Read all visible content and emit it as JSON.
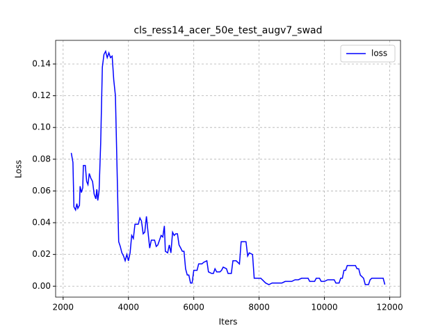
{
  "chart_data": {
    "type": "line",
    "title": "cls_ress14_acer_50e_test_augv7_swad",
    "xlabel": "Iters",
    "ylabel": "Loss",
    "grid": true,
    "legend": "upper right",
    "xlim": [
      1770,
      12330
    ],
    "xticks": [
      2000,
      4000,
      6000,
      8000,
      10000,
      12000
    ],
    "ylim": [
      -0.0069,
      0.1549
    ],
    "yticks": [
      {
        "value": 0,
        "label": "0.00"
      },
      0.02,
      0.04,
      0.06,
      0.08,
      {
        "value": 0.1,
        "label": "0.10"
      },
      0.12,
      0.14
    ],
    "series": [
      {
        "name": "loss",
        "color": "#0000ff",
        "x": [
          2250,
          2300,
          2330,
          2380,
          2420,
          2450,
          2500,
          2520,
          2560,
          2600,
          2620,
          2680,
          2720,
          2760,
          2800,
          2850,
          2900,
          2950,
          3000,
          3030,
          3060,
          3100,
          3150,
          3200,
          3250,
          3300,
          3350,
          3400,
          3450,
          3500,
          3550,
          3600,
          3650,
          3700,
          3750,
          3800,
          3850,
          3900,
          3950,
          4000,
          4050,
          4100,
          4150,
          4200,
          4300,
          4350,
          4400,
          4450,
          4500,
          4550,
          4600,
          4650,
          4700,
          4800,
          4850,
          4900,
          4950,
          5000,
          5050,
          5100,
          5130,
          5200,
          5250,
          5300,
          5350,
          5400,
          5450,
          5500,
          5550,
          5600,
          5650,
          5700,
          5750,
          5800,
          5850,
          5900,
          5950,
          6000,
          6100,
          6150,
          6250,
          6300,
          6400,
          6450,
          6550,
          6600,
          6650,
          6700,
          6800,
          6850,
          6900,
          7000,
          7050,
          7150,
          7200,
          7300,
          7400,
          7450,
          7550,
          7600,
          7650,
          7700,
          7800,
          7850,
          7950,
          8050,
          8100,
          8200,
          8300,
          8400,
          8600,
          8700,
          8800,
          9000,
          9100,
          9200,
          9300,
          9500,
          9550,
          9700,
          9750,
          9850,
          9900,
          10000,
          10100,
          10300,
          10350,
          10450,
          10500,
          10550,
          10600,
          10650,
          10700,
          10950,
          11000,
          11050,
          11100,
          11200,
          11250,
          11350,
          11400,
          11450,
          11800,
          11850
        ],
        "values": [
          0.084,
          0.078,
          0.05,
          0.048,
          0.052,
          0.049,
          0.051,
          0.063,
          0.059,
          0.062,
          0.076,
          0.076,
          0.066,
          0.064,
          0.071,
          0.068,
          0.066,
          0.058,
          0.055,
          0.061,
          0.054,
          0.06,
          0.09,
          0.138,
          0.146,
          0.148,
          0.144,
          0.147,
          0.144,
          0.145,
          0.13,
          0.12,
          0.075,
          0.028,
          0.025,
          0.021,
          0.019,
          0.016,
          0.02,
          0.016,
          0.021,
          0.032,
          0.03,
          0.039,
          0.039,
          0.043,
          0.041,
          0.033,
          0.034,
          0.044,
          0.034,
          0.024,
          0.029,
          0.029,
          0.025,
          0.026,
          0.029,
          0.032,
          0.031,
          0.038,
          0.022,
          0.021,
          0.026,
          0.021,
          0.034,
          0.032,
          0.033,
          0.033,
          0.026,
          0.024,
          0.022,
          0.022,
          0.011,
          0.007,
          0.007,
          0.002,
          0.002,
          0.01,
          0.01,
          0.014,
          0.014,
          0.015,
          0.016,
          0.009,
          0.008,
          0.008,
          0.011,
          0.009,
          0.009,
          0.01,
          0.012,
          0.011,
          0.008,
          0.008,
          0.016,
          0.016,
          0.014,
          0.028,
          0.028,
          0.028,
          0.019,
          0.021,
          0.02,
          0.005,
          0.005,
          0.005,
          0.004,
          0.002,
          0.001,
          0.002,
          0.002,
          0.002,
          0.003,
          0.003,
          0.004,
          0.004,
          0.005,
          0.005,
          0.003,
          0.003,
          0.005,
          0.005,
          0.003,
          0.003,
          0.004,
          0.004,
          0.002,
          0.002,
          0.005,
          0.005,
          0.01,
          0.01,
          0.013,
          0.013,
          0.011,
          0.011,
          0.007,
          0.005,
          0.001,
          0.001,
          0.004,
          0.005,
          0.005,
          0.001
        ]
      }
    ]
  }
}
